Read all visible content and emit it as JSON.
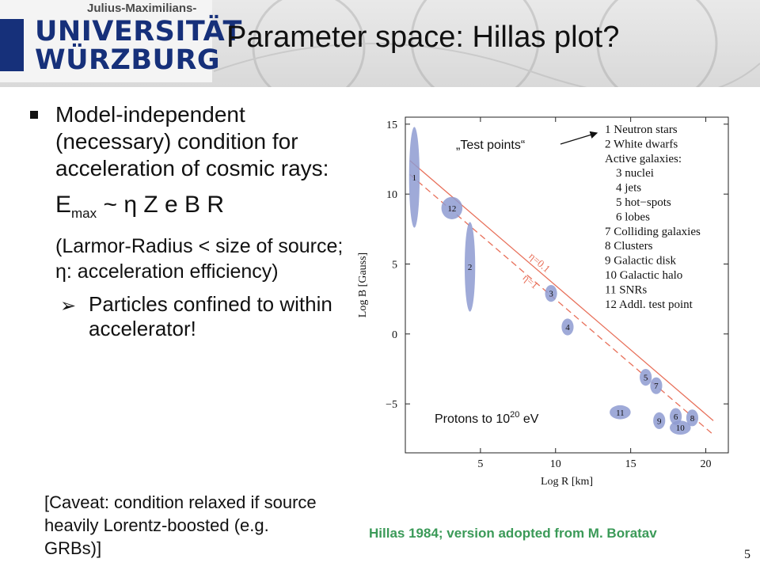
{
  "header": {
    "logo_small": "Julius-Maximilians-",
    "logo_line1": "UNIVERSITÄT",
    "logo_line2": "WÜRZBURG",
    "title": "Parameter space: Hillas plot?"
  },
  "left": {
    "bullet1": "Model-independent (necessary) condition for acceleration of cosmic rays:",
    "formula_e": "E",
    "formula_sub": "max",
    "formula_rest": " ~ η Z e B R",
    "paren": "(Larmor-Radius < size of source; η: acceleration efficiency)",
    "bullet2": "Particles confined to within accelerator!",
    "caveat": "[Caveat: condition relaxed if source heavily Lorentz-boosted (e.g. GRBs)]"
  },
  "credit": "Hillas 1984; version adopted from M. Boratav",
  "page_number": "5",
  "colors": {
    "header_blue": "#16307a",
    "line_color": "#e8705a",
    "ellipse_fill": "#8e9bd1",
    "credit_green": "#3b9a58"
  },
  "chart_data": {
    "type": "scatter",
    "xlabel": "Log R [km]",
    "ylabel": "Log B [Gauss]",
    "xlim": [
      0,
      21.5
    ],
    "ylim": [
      -8.5,
      15.5
    ],
    "xticks": [
      5,
      10,
      15,
      20
    ],
    "yticks": [
      15,
      10,
      5,
      0,
      -5
    ],
    "ytick_labels": [
      "15",
      "10",
      "5",
      "0",
      "−5"
    ],
    "lines": [
      {
        "label": "η=0.1",
        "style": "solid",
        "x": [
          0.3,
          20.5
        ],
        "y": [
          12.4,
          -6.2
        ]
      },
      {
        "label": "η=1",
        "style": "dashed",
        "x": [
          0.3,
          20.5
        ],
        "y": [
          11.4,
          -7.2
        ]
      }
    ],
    "points": [
      {
        "label": "1",
        "x": 0.6,
        "y": 11.2,
        "rx": 0.35,
        "ry": 3.6
      },
      {
        "label": "12",
        "x": 3.1,
        "y": 9.0,
        "rx": 0.7,
        "ry": 0.8
      },
      {
        "label": "2",
        "x": 4.3,
        "y": 4.8,
        "rx": 0.35,
        "ry": 3.2
      },
      {
        "label": "3",
        "x": 9.7,
        "y": 2.9,
        "rx": 0.4,
        "ry": 0.6
      },
      {
        "label": "4",
        "x": 10.8,
        "y": 0.5,
        "rx": 0.4,
        "ry": 0.6
      },
      {
        "label": "5",
        "x": 16.0,
        "y": -3.1,
        "rx": 0.4,
        "ry": 0.6
      },
      {
        "label": "7",
        "x": 16.7,
        "y": -3.7,
        "rx": 0.4,
        "ry": 0.6
      },
      {
        "label": "11",
        "x": 14.3,
        "y": -5.6,
        "rx": 0.7,
        "ry": 0.5
      },
      {
        "label": "9",
        "x": 16.9,
        "y": -6.2,
        "rx": 0.4,
        "ry": 0.6
      },
      {
        "label": "6",
        "x": 18.0,
        "y": -5.9,
        "rx": 0.4,
        "ry": 0.6
      },
      {
        "label": "10",
        "x": 18.3,
        "y": -6.7,
        "rx": 0.7,
        "ry": 0.5
      },
      {
        "label": "8",
        "x": 19.1,
        "y": -6.0,
        "rx": 0.4,
        "ry": 0.6
      }
    ],
    "legend": [
      "1 Neutron stars",
      "2 White dwarfs",
      "Active galaxies:",
      "3 nuclei",
      "4 jets",
      "5 hot−spots",
      "6 lobes",
      "7 Colliding galaxies",
      "8 Clusters",
      "9 Galactic disk",
      "10 Galactic halo",
      "11 SNRs",
      "12 Addl. test point"
    ],
    "annotations": {
      "test_points": "„Test points“",
      "protons_prefix": "Protons to 10",
      "protons_exp": "20",
      "protons_suffix": " eV"
    }
  }
}
